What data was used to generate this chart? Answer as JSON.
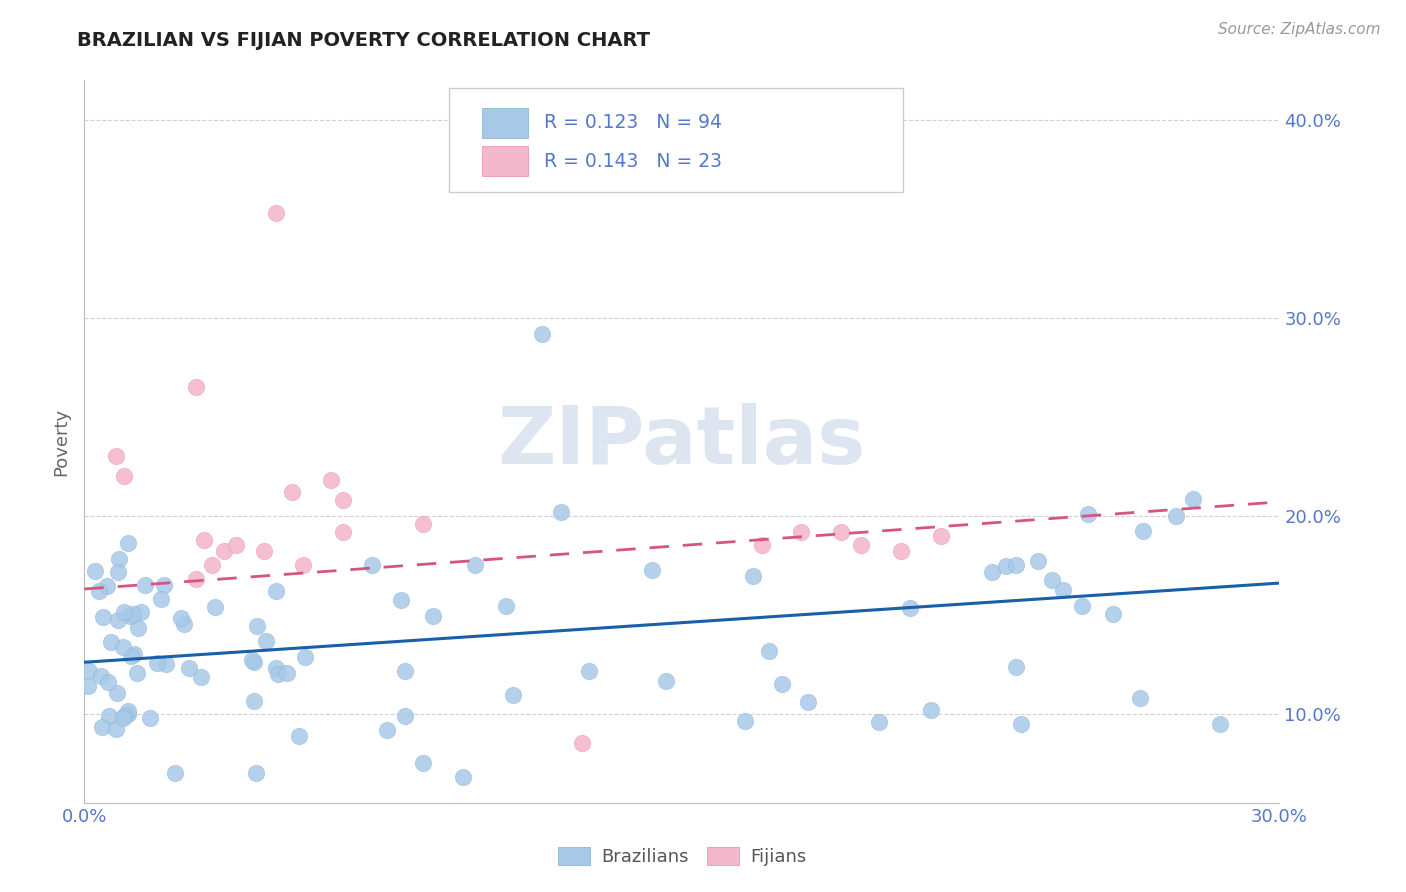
{
  "title": "BRAZILIAN VS FIJIAN POVERTY CORRELATION CHART",
  "source": "Source: ZipAtlas.com",
  "ylabel": "Poverty",
  "xlim": [
    0.0,
    0.3
  ],
  "ylim": [
    0.055,
    0.42
  ],
  "yticks": [
    0.1,
    0.2,
    0.3,
    0.4
  ],
  "ytick_labels": [
    "10.0%",
    "20.0%",
    "30.0%",
    "40.0%"
  ],
  "xticks": [
    0.0,
    0.05,
    0.1,
    0.15,
    0.2,
    0.25,
    0.3
  ],
  "xtick_labels": [
    "0.0%",
    "",
    "",
    "",
    "",
    "",
    "30.0%"
  ],
  "blue_color": "#a8c8e8",
  "blue_edge_color": "#7aafd4",
  "pink_color": "#f4b8cc",
  "pink_edge_color": "#e88aaa",
  "blue_line_color": "#1a5fa8",
  "pink_line_color": "#d45580",
  "watermark_color": "#dde5f0",
  "legend_box_color": "#f0f0f8",
  "title_color": "#222222",
  "tick_color": "#5577cc",
  "source_color": "#999999",
  "ylabel_color": "#666666",
  "braz_line_x0": 0.0,
  "braz_line_y0": 0.126,
  "braz_line_x1": 0.3,
  "braz_line_y1": 0.166,
  "fij_line_x0": 0.0,
  "fij_line_y0": 0.163,
  "fij_line_x1": 0.3,
  "fij_line_y1": 0.207
}
